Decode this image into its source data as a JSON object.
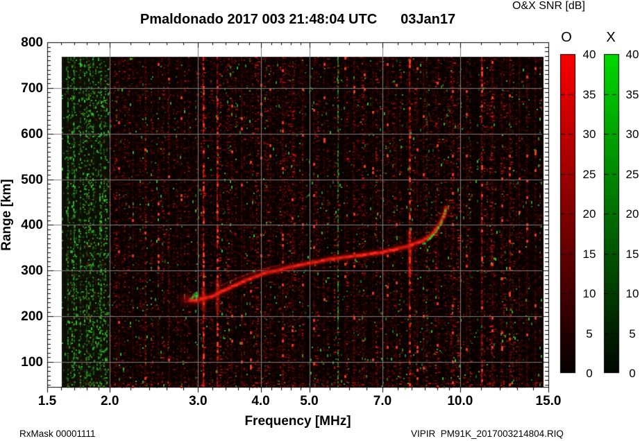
{
  "header": {
    "station_time": "Pmaldonado 2017 003 21:48:04 UTC",
    "date": "03Jan17",
    "colorbar_title": "O&X SNR [dB]"
  },
  "footer": {
    "rx_mask": "RxMask 00001111",
    "file": "VIPIR  PM91K_2017003214804.RIQ"
  },
  "axes": {
    "x": {
      "label": "Frequency [MHz]",
      "scale": "log",
      "min": 1.5,
      "max": 15.0,
      "majors": [
        {
          "f": 1.5,
          "t": "1.5"
        },
        {
          "f": 2.0,
          "t": "2.0"
        },
        {
          "f": 3.0,
          "t": "3.0"
        },
        {
          "f": 4.0,
          "t": "4.0"
        },
        {
          "f": 5.0,
          "t": "5.0"
        },
        {
          "f": 7.0,
          "t": "7.0"
        },
        {
          "f": 10.0,
          "t": "10.0"
        },
        {
          "f": 15.0,
          "t": "15.0"
        }
      ],
      "minors": [
        1.6,
        1.7,
        1.8,
        1.9,
        2.2,
        2.4,
        2.6,
        2.8,
        3.2,
        3.4,
        3.6,
        3.8,
        4.2,
        4.4,
        4.6,
        4.8,
        5.5,
        6.0,
        6.5,
        7.5,
        8.0,
        8.5,
        9.0,
        9.5,
        11.0,
        12.0,
        13.0,
        14.0
      ]
    },
    "y": {
      "label": "Range [km]",
      "min": 45,
      "max": 800,
      "majors": [
        {
          "km": 800,
          "t": "800"
        },
        {
          "km": 700,
          "t": "700"
        },
        {
          "km": 600,
          "t": "600"
        },
        {
          "km": 500,
          "t": "500"
        },
        {
          "km": 400,
          "t": "400"
        },
        {
          "km": 300,
          "t": "300"
        },
        {
          "km": 200,
          "t": "200"
        },
        {
          "km": 100,
          "t": "100"
        }
      ],
      "minor_step": 10
    },
    "grid_x_mhz": [
      2,
      3,
      4,
      5,
      7,
      10
    ],
    "grid_y_km": [
      100,
      200,
      300,
      400,
      500,
      600,
      700
    ],
    "grid_color": "#7d7d7d"
  },
  "colorbars": [
    {
      "header": "O",
      "top_color": "#fb0000",
      "bottom_color": "#060000",
      "ticks": [
        {
          "v": 40,
          "t": "40"
        },
        {
          "v": 35,
          "t": "35"
        },
        {
          "v": 30,
          "t": "30"
        },
        {
          "v": 25,
          "t": "25"
        },
        {
          "v": 20,
          "t": "20"
        },
        {
          "v": 15,
          "t": "15"
        },
        {
          "v": 10,
          "t": "10"
        },
        {
          "v": 5,
          "t": "5"
        },
        {
          "v": 0,
          "t": "0"
        }
      ]
    },
    {
      "header": "X",
      "top_color": "#00d900",
      "bottom_color": "#000600",
      "ticks": [
        {
          "v": 40,
          "t": "40"
        },
        {
          "v": 35,
          "t": "35"
        },
        {
          "v": 30,
          "t": "30"
        },
        {
          "v": 25,
          "t": "25"
        },
        {
          "v": 20,
          "t": "20"
        },
        {
          "v": 15,
          "t": "15"
        },
        {
          "v": 10,
          "t": "10"
        },
        {
          "v": 5,
          "t": "5"
        },
        {
          "v": 0,
          "t": "0"
        }
      ]
    }
  ],
  "chart_data": {
    "type": "heatmap",
    "title": "Pmaldonado 2017 003 21:48:04 UTC 03Jan17",
    "xlabel": "Frequency [MHz]",
    "ylabel": "Range [km]",
    "x_scale": "log",
    "x_range_mhz": [
      1.5,
      15.0
    ],
    "y_range_km": [
      45,
      800
    ],
    "data_extent": {
      "f_mhz": [
        1.6,
        14.66
      ],
      "km": [
        45,
        768
      ]
    },
    "colorbar": {
      "label": "O&X SNR [dB]",
      "o_mode_color": "red",
      "x_mode_color": "green",
      "range_db": [
        0,
        40
      ],
      "tick_step_db": 5
    },
    "o_trace_f_km": [
      [
        2.88,
        235
      ],
      [
        3.0,
        235
      ],
      [
        3.09,
        240
      ],
      [
        3.19,
        243
      ],
      [
        3.27,
        249
      ],
      [
        3.4,
        258
      ],
      [
        3.57,
        269
      ],
      [
        3.74,
        279
      ],
      [
        3.93,
        288
      ],
      [
        4.12,
        296
      ],
      [
        4.32,
        300
      ],
      [
        4.53,
        307
      ],
      [
        4.75,
        311
      ],
      [
        4.98,
        316
      ],
      [
        5.23,
        320
      ],
      [
        5.48,
        325
      ],
      [
        5.76,
        328
      ],
      [
        6.04,
        331
      ],
      [
        6.34,
        334
      ],
      [
        6.65,
        337
      ],
      [
        6.98,
        340
      ],
      [
        7.26,
        344
      ],
      [
        7.55,
        349
      ],
      [
        7.87,
        353
      ],
      [
        8.13,
        360
      ],
      [
        8.4,
        365
      ],
      [
        8.64,
        373
      ],
      [
        8.84,
        382
      ],
      [
        9.0,
        393
      ],
      [
        9.14,
        405
      ],
      [
        9.26,
        418
      ],
      [
        9.34,
        430
      ],
      [
        9.4,
        441
      ]
    ],
    "o_echo_trace_f_km": [
      [
        3.29,
        264
      ],
      [
        3.45,
        275
      ],
      [
        3.62,
        285
      ],
      [
        3.81,
        294
      ],
      [
        4.0,
        302
      ],
      [
        4.2,
        308
      ],
      [
        4.38,
        312
      ]
    ],
    "x_trace_f_km": [
      [
        8.45,
        358
      ],
      [
        8.67,
        369
      ],
      [
        8.9,
        381
      ],
      [
        9.06,
        395
      ],
      [
        9.2,
        409
      ],
      [
        9.28,
        424
      ],
      [
        9.34,
        439
      ],
      [
        9.37,
        449
      ]
    ],
    "x_patch_start": {
      "f_mhz": [
        2.86,
        2.98
      ],
      "km": [
        240,
        254
      ]
    },
    "rfi_red_mhz": [
      [
        3.07,
        0.95
      ],
      [
        3.28,
        0.8
      ],
      [
        7.92,
        0.85
      ],
      [
        11.04,
        0.6
      ],
      [
        2.08,
        0.18
      ],
      [
        2.22,
        0.15
      ],
      [
        2.35,
        0.18
      ],
      [
        2.5,
        0.15
      ],
      [
        2.62,
        0.2
      ],
      [
        2.78,
        0.15
      ],
      [
        3.5,
        0.2
      ],
      [
        3.66,
        0.25
      ],
      [
        3.82,
        0.18
      ],
      [
        4.0,
        0.22
      ],
      [
        4.18,
        0.18
      ],
      [
        4.42,
        0.2
      ],
      [
        4.62,
        0.15
      ],
      [
        4.85,
        0.18
      ],
      [
        5.1,
        0.2
      ],
      [
        5.35,
        0.15
      ],
      [
        5.9,
        0.18
      ],
      [
        6.15,
        0.2
      ],
      [
        6.45,
        0.15
      ],
      [
        6.7,
        0.18
      ],
      [
        7.15,
        0.2
      ],
      [
        7.45,
        0.18
      ],
      [
        8.2,
        0.25
      ],
      [
        8.45,
        0.2
      ],
      [
        9.0,
        0.15
      ],
      [
        9.65,
        0.2
      ],
      [
        10.3,
        0.2
      ],
      [
        11.6,
        0.25
      ],
      [
        12.1,
        0.2
      ],
      [
        12.55,
        0.3
      ],
      [
        13.1,
        0.2
      ],
      [
        13.6,
        0.25
      ],
      [
        14.1,
        0.2
      ]
    ],
    "rfi_green_mhz": [
      [
        1.65,
        0.5
      ],
      [
        1.7,
        0.65
      ],
      [
        1.75,
        0.45
      ],
      [
        1.8,
        0.5
      ],
      [
        1.86,
        0.4
      ],
      [
        1.92,
        0.45
      ],
      [
        5.71,
        0.8
      ],
      [
        8.59,
        0.3
      ],
      [
        10.45,
        0.22
      ],
      [
        12.7,
        0.18
      ]
    ],
    "green_band_mhz": [
      1.6,
      1.98
    ],
    "noise": {
      "seed": 20170103,
      "red_density": 0.6,
      "green_density": 0.05
    }
  }
}
